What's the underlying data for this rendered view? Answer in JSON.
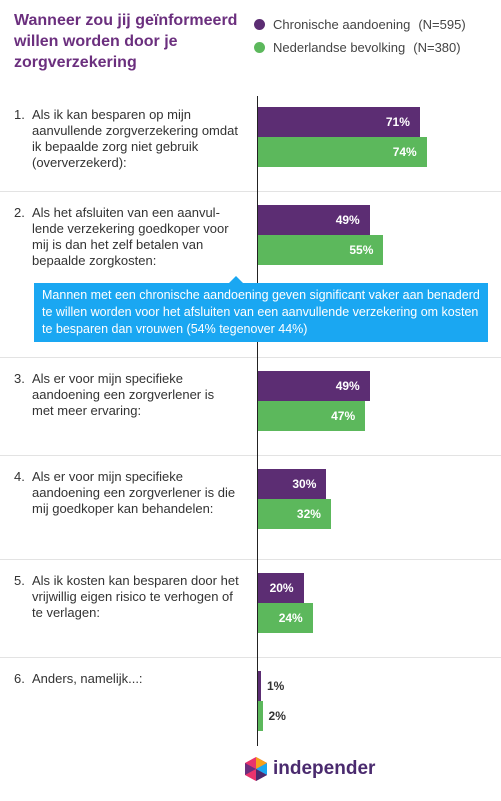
{
  "header": {
    "title": "Wanneer zou jij geïnformeerd\n willen worden door je\nzorgverzekering"
  },
  "legend": [
    {
      "name": "Chronische aandoening",
      "n": "(N=595)",
      "color": "#5c2d73"
    },
    {
      "name": "Nederlandse bevolking",
      "n": "(N=380)",
      "color": "#5cb85c"
    }
  ],
  "note": {
    "text": "Mannen met een chronische aandoening geven significant vaker aan benaderd te willen worden voor het afsluiten van een aanvullende verzekering om kosten te besparen dan vrouwen (54% tegenover 44%)"
  },
  "logo": {
    "text": "independer",
    "icon": "hexagon-logo-icon"
  },
  "chart_data": {
    "type": "bar",
    "orientation": "horizontal",
    "categories": [
      {
        "num": "1.",
        "label": "Als ik kan besparen op mijn aanvullende zorgverzekering omdat ik bepaalde zorg niet gebruik (oververzekerd):"
      },
      {
        "num": "2.",
        "label": "Als het afsluiten van een aanvul-lende verzekering goedkoper voor mij is dan het zelf betalen van bepaalde zorgkosten:"
      },
      {
        "num": "3.",
        "label": "Als er voor mijn specifieke aandoening een zorgverlener is met meer ervaring:"
      },
      {
        "num": "4.",
        "label": "Als er voor mijn specifieke aandoening een zorgverlener is die mij goedkoper kan behandelen:"
      },
      {
        "num": "5.",
        "label": "Als ik kosten kan besparen door het vrijwillig eigen risico te verhogen of te verlagen:"
      },
      {
        "num": "6.",
        "label": "Anders, namelijk...:"
      }
    ],
    "series": [
      {
        "name": "Chronische aandoening",
        "values": [
          71,
          49,
          49,
          30,
          20,
          1
        ],
        "labels": [
          "71%",
          "49%",
          "49%",
          "30%",
          "20%",
          "1%"
        ]
      },
      {
        "name": "Nederlandse bevolking",
        "values": [
          74,
          55,
          47,
          32,
          24,
          2
        ],
        "labels": [
          "74%",
          "55%",
          "47%",
          "32%",
          "24%",
          "2%"
        ]
      }
    ],
    "xlim": [
      0,
      100
    ],
    "grid": false,
    "legend_position": "top-right"
  }
}
